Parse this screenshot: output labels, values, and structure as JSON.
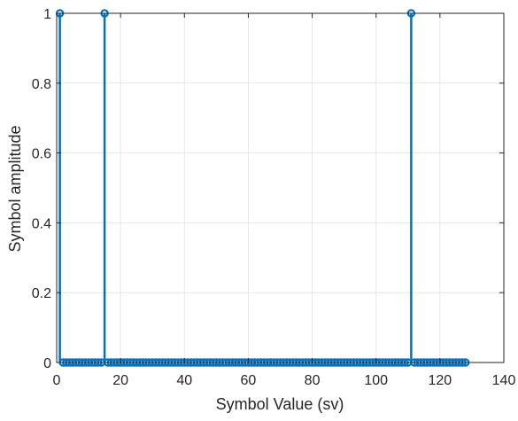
{
  "chart_data": {
    "type": "stem",
    "title": "",
    "xlabel": "Symbol Value (sv)",
    "ylabel": "Symbol amplitude",
    "xlim": [
      0,
      140
    ],
    "ylim": [
      0,
      1
    ],
    "xticks": [
      0,
      20,
      40,
      60,
      80,
      100,
      120,
      140
    ],
    "yticks": [
      0,
      0.2,
      0.4,
      0.6,
      0.8,
      1
    ],
    "xtick_labels": [
      "0",
      "20",
      "40",
      "60",
      "80",
      "100",
      "120",
      "140"
    ],
    "ytick_labels": [
      "0",
      "0.2",
      "0.4",
      "0.6",
      "0.8",
      "1"
    ],
    "grid": true,
    "series": [
      {
        "color": "#0072BD",
        "x_range": [
          1,
          128
        ],
        "default_value": 0,
        "points": [
          {
            "x": 1,
            "y": 1
          },
          {
            "x": 15,
            "y": 1
          },
          {
            "x": 111,
            "y": 1
          }
        ]
      }
    ]
  }
}
